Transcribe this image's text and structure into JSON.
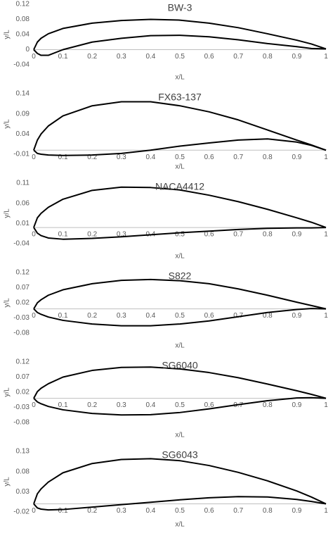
{
  "chart_data": [
    {
      "type": "line",
      "title": "BW-3",
      "x_label": "x/L",
      "y_label": "y/L",
      "x": [
        0,
        0.0125,
        0.025,
        0.05,
        0.1,
        0.2,
        0.3,
        0.4,
        0.5,
        0.6,
        0.7,
        0.8,
        0.9,
        0.95,
        1
      ],
      "series": [
        {
          "color": "#000000",
          "values": [
            0,
            0.02,
            0.03,
            0.042,
            0.056,
            0.07,
            0.077,
            0.08,
            0.078,
            0.07,
            0.058,
            0.042,
            0.025,
            0.015,
            0.002
          ]
        },
        {
          "color": "#000000",
          "values": [
            0,
            -0.01,
            -0.015,
            -0.015,
            0,
            0.02,
            0.03,
            0.037,
            0.038,
            0.034,
            0.026,
            0.016,
            0.008,
            0.003,
            0.002
          ]
        }
      ],
      "xlim": [
        0,
        1
      ],
      "xticks": [
        0,
        0.1,
        0.2,
        0.3,
        0.4,
        0.5,
        0.6,
        0.7,
        0.8,
        0.9,
        1
      ],
      "ylim": [
        -0.04,
        0.12
      ],
      "yticks": [
        -0.04,
        0,
        0.04,
        0.08,
        0.12
      ]
    },
    {
      "type": "line",
      "title": "FX63-137",
      "x_label": "x/L",
      "y_label": "y/L",
      "x": [
        0,
        0.0125,
        0.025,
        0.05,
        0.1,
        0.2,
        0.3,
        0.4,
        0.5,
        0.6,
        0.7,
        0.8,
        0.9,
        0.95,
        1
      ],
      "series": [
        {
          "color": "#000000",
          "values": [
            0,
            0.025,
            0.04,
            0.06,
            0.085,
            0.11,
            0.12,
            0.12,
            0.11,
            0.095,
            0.075,
            0.05,
            0.025,
            0.013,
            0
          ]
        },
        {
          "color": "#000000",
          "values": [
            0,
            -0.008,
            -0.01,
            -0.012,
            -0.013,
            -0.012,
            -0.008,
            0,
            0.01,
            0.018,
            0.025,
            0.028,
            0.02,
            0.012,
            0
          ]
        }
      ],
      "xlim": [
        0,
        1
      ],
      "xticks": [
        0,
        0.1,
        0.2,
        0.3,
        0.4,
        0.5,
        0.6,
        0.7,
        0.8,
        0.9,
        1
      ],
      "ylim": [
        -0.01,
        0.14
      ],
      "yticks": [
        -0.01,
        0.04,
        0.09,
        0.14
      ]
    },
    {
      "type": "line",
      "title": "NACA4412",
      "x_label": "x/L",
      "y_label": "y/L",
      "x": [
        0,
        0.0125,
        0.025,
        0.05,
        0.1,
        0.2,
        0.3,
        0.4,
        0.5,
        0.6,
        0.7,
        0.8,
        0.9,
        0.95,
        1
      ],
      "series": [
        {
          "color": "#000000",
          "values": [
            0,
            0.024,
            0.035,
            0.05,
            0.07,
            0.092,
            0.1,
            0.099,
            0.093,
            0.08,
            0.064,
            0.045,
            0.024,
            0.013,
            0
          ]
        },
        {
          "color": "#000000",
          "values": [
            0,
            -0.014,
            -0.02,
            -0.026,
            -0.029,
            -0.027,
            -0.023,
            -0.018,
            -0.013,
            -0.009,
            -0.005,
            -0.002,
            -0.001,
            -0.001,
            0
          ]
        }
      ],
      "xlim": [
        0,
        1
      ],
      "xticks": [
        0,
        0.1,
        0.2,
        0.3,
        0.4,
        0.5,
        0.6,
        0.7,
        0.8,
        0.9,
        1
      ],
      "ylim": [
        -0.04,
        0.11
      ],
      "yticks": [
        -0.04,
        0.01,
        0.06,
        0.11
      ]
    },
    {
      "type": "line",
      "title": "S822",
      "x_label": "x/L",
      "y_label": "y/L",
      "x": [
        0,
        0.0125,
        0.025,
        0.05,
        0.1,
        0.2,
        0.3,
        0.4,
        0.5,
        0.6,
        0.7,
        0.8,
        0.9,
        0.95,
        1
      ],
      "series": [
        {
          "color": "#000000",
          "values": [
            0,
            0.02,
            0.03,
            0.045,
            0.063,
            0.083,
            0.094,
            0.097,
            0.093,
            0.083,
            0.066,
            0.045,
            0.022,
            0.011,
            0
          ]
        },
        {
          "color": "#000000",
          "values": [
            0,
            -0.012,
            -0.018,
            -0.027,
            -0.038,
            -0.05,
            -0.056,
            -0.056,
            -0.05,
            -0.04,
            -0.026,
            -0.012,
            -0.002,
            0.001,
            0
          ]
        }
      ],
      "xlim": [
        0,
        1
      ],
      "xticks": [
        0,
        0.1,
        0.2,
        0.3,
        0.4,
        0.5,
        0.6,
        0.7,
        0.8,
        0.9,
        1
      ],
      "ylim": [
        -0.08,
        0.12
      ],
      "yticks": [
        -0.08,
        -0.03,
        0.02,
        0.07,
        0.12
      ]
    },
    {
      "type": "line",
      "title": "SG6040",
      "x_label": "x/L",
      "y_label": "y/L",
      "x": [
        0,
        0.0125,
        0.025,
        0.05,
        0.1,
        0.2,
        0.3,
        0.4,
        0.5,
        0.6,
        0.7,
        0.8,
        0.9,
        0.95,
        1
      ],
      "series": [
        {
          "color": "#000000",
          "values": [
            0,
            0.022,
            0.033,
            0.048,
            0.07,
            0.092,
            0.102,
            0.103,
            0.097,
            0.085,
            0.068,
            0.047,
            0.025,
            0.013,
            0
          ]
        },
        {
          "color": "#000000",
          "values": [
            0,
            -0.012,
            -0.018,
            -0.027,
            -0.038,
            -0.05,
            -0.055,
            -0.054,
            -0.047,
            -0.035,
            -0.021,
            -0.008,
            0.001,
            0.002,
            0
          ]
        }
      ],
      "xlim": [
        0,
        1
      ],
      "xticks": [
        0,
        0.1,
        0.2,
        0.3,
        0.4,
        0.5,
        0.6,
        0.7,
        0.8,
        0.9,
        1
      ],
      "ylim": [
        -0.08,
        0.12
      ],
      "yticks": [
        -0.08,
        -0.03,
        0.02,
        0.07,
        0.12
      ]
    },
    {
      "type": "line",
      "title": "SG6043",
      "x_label": "x/L",
      "y_label": "y/L",
      "x": [
        0,
        0.0125,
        0.025,
        0.05,
        0.1,
        0.2,
        0.3,
        0.4,
        0.5,
        0.6,
        0.7,
        0.8,
        0.9,
        0.95,
        1
      ],
      "series": [
        {
          "color": "#000000",
          "values": [
            0,
            0.025,
            0.037,
            0.054,
            0.077,
            0.1,
            0.11,
            0.112,
            0.107,
            0.095,
            0.078,
            0.057,
            0.032,
            0.017,
            0
          ]
        },
        {
          "color": "#000000",
          "values": [
            0,
            -0.01,
            -0.013,
            -0.015,
            -0.014,
            -0.008,
            -0.002,
            0.004,
            0.01,
            0.015,
            0.018,
            0.017,
            0.011,
            0.006,
            0
          ]
        }
      ],
      "xlim": [
        0,
        1
      ],
      "xticks": [
        0,
        0.1,
        0.2,
        0.3,
        0.4,
        0.5,
        0.6,
        0.7,
        0.8,
        0.9,
        1
      ],
      "ylim": [
        -0.02,
        0.13
      ],
      "yticks": [
        -0.02,
        0.03,
        0.08,
        0.13
      ]
    }
  ]
}
